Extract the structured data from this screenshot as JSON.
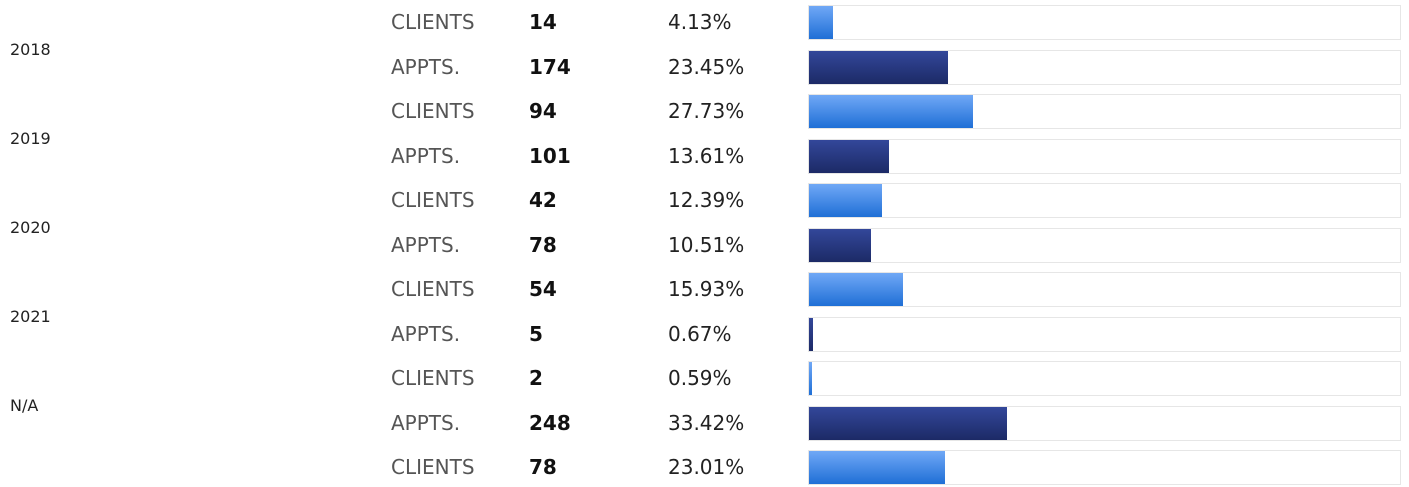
{
  "table": {
    "rows": [
      {
        "type": "CLIENTS",
        "count": "14",
        "percent": {
          "value": 4.13,
          "label": "4.13%"
        }
      },
      {
        "year": "2018",
        "type": "APPTS.",
        "count": "174",
        "percent": {
          "value": 23.45,
          "label": "23.45%"
        }
      },
      {
        "type": "CLIENTS",
        "count": "94",
        "percent": {
          "value": 27.73,
          "label": "27.73%"
        }
      },
      {
        "year": "2019",
        "type": "APPTS.",
        "count": "101",
        "percent": {
          "value": 13.61,
          "label": "13.61%"
        }
      },
      {
        "type": "CLIENTS",
        "count": "42",
        "percent": {
          "value": 12.39,
          "label": "12.39%"
        }
      },
      {
        "year": "2020",
        "type": "APPTS.",
        "count": "78",
        "percent": {
          "value": 10.51,
          "label": "10.51%"
        }
      },
      {
        "type": "CLIENTS",
        "count": "54",
        "percent": {
          "value": 15.93,
          "label": "15.93%"
        }
      },
      {
        "year": "2021",
        "type": "APPTS.",
        "count": "5",
        "percent": {
          "value": 0.67,
          "label": "0.67%"
        }
      },
      {
        "type": "CLIENTS",
        "count": "2",
        "percent": {
          "value": 0.59,
          "label": "0.59%"
        }
      },
      {
        "year": "N/A",
        "type": "APPTS.",
        "count": "248",
        "percent": {
          "value": 33.42,
          "label": "33.42%"
        }
      },
      {
        "type": "CLIENTS",
        "count": "78",
        "percent": {
          "value": 23.01,
          "label": "23.01%"
        }
      }
    ]
  }
}
